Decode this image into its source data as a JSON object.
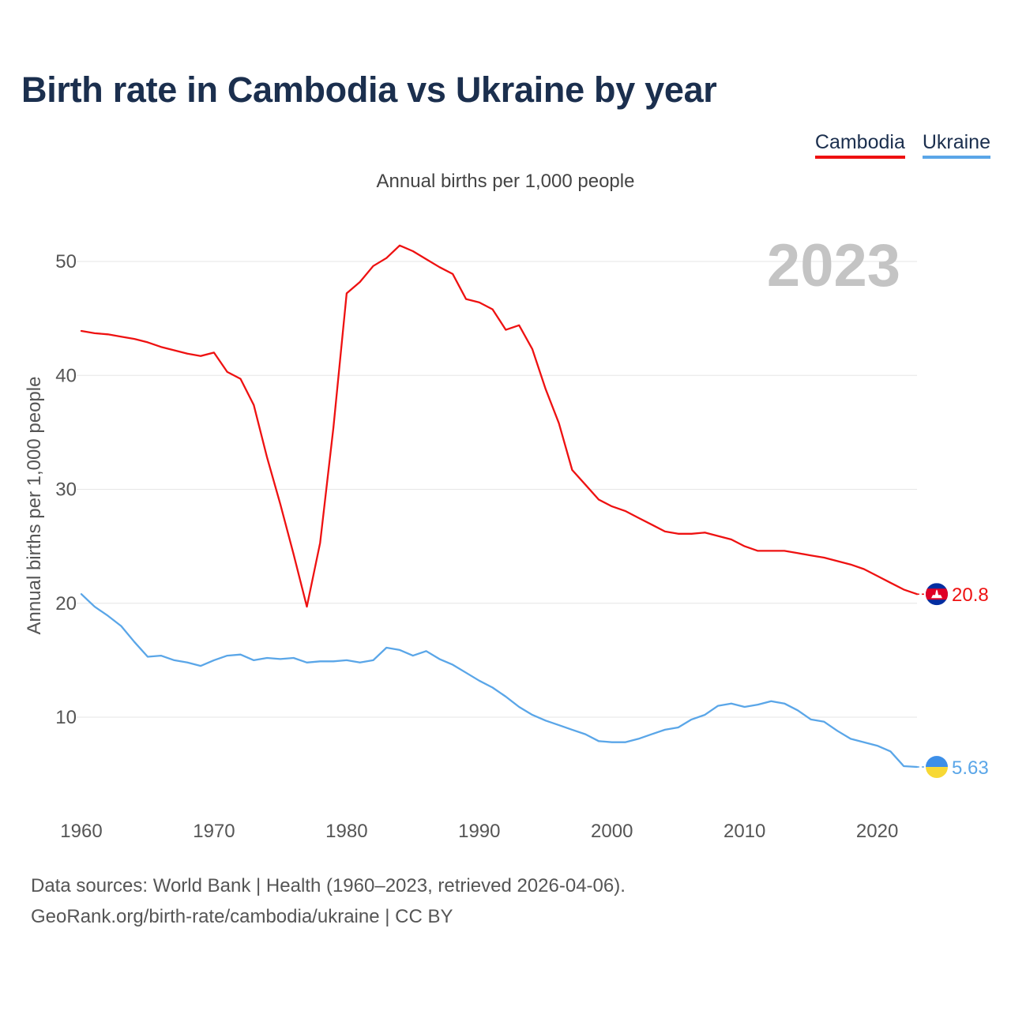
{
  "title": "Birth rate in Cambodia vs Ukraine by year",
  "subtitle": "Annual births per 1,000 people",
  "legend": [
    {
      "label": "Cambodia",
      "color": "#ee1111"
    },
    {
      "label": "Ukraine",
      "color": "#5aa6e8"
    }
  ],
  "year_watermark": "2023",
  "footer": {
    "line1": "Data sources: World Bank | Health (1960–2023, retrieved 2026-04-06).",
    "line2": "GeoRank.org/birth-rate/cambodia/ukraine | CC BY"
  },
  "chart_data": {
    "type": "line",
    "title": "Birth rate in Cambodia vs Ukraine by year",
    "ylabel": "Annual births per 1,000 people",
    "xlabel": "",
    "xlim": [
      1960,
      2023
    ],
    "ylim": [
      3,
      57
    ],
    "yticks": [
      10,
      20,
      30,
      40,
      50
    ],
    "xticks": [
      1960,
      1970,
      1980,
      1990,
      2000,
      2010,
      2020
    ],
    "grid": true,
    "x": [
      1960,
      1961,
      1962,
      1963,
      1964,
      1965,
      1966,
      1967,
      1968,
      1969,
      1970,
      1971,
      1972,
      1973,
      1974,
      1975,
      1976,
      1977,
      1978,
      1979,
      1980,
      1981,
      1982,
      1983,
      1984,
      1985,
      1986,
      1987,
      1988,
      1989,
      1990,
      1991,
      1992,
      1993,
      1994,
      1995,
      1996,
      1997,
      1998,
      1999,
      2000,
      2001,
      2002,
      2003,
      2004,
      2005,
      2006,
      2007,
      2008,
      2009,
      2010,
      2011,
      2012,
      2013,
      2014,
      2015,
      2016,
      2017,
      2018,
      2019,
      2020,
      2021,
      2022,
      2023
    ],
    "series": [
      {
        "name": "Cambodia",
        "color": "#ee1111",
        "end_label": "20.8",
        "values": [
          43.9,
          43.7,
          43.6,
          43.4,
          43.2,
          42.9,
          42.5,
          42.2,
          41.9,
          41.7,
          42.0,
          40.3,
          39.7,
          37.4,
          32.8,
          28.7,
          24.3,
          19.7,
          25.3,
          35.4,
          47.2,
          48.2,
          49.6,
          50.3,
          51.4,
          50.9,
          50.2,
          49.5,
          48.9,
          46.7,
          46.4,
          45.8,
          44.0,
          44.4,
          42.3,
          38.8,
          35.8,
          31.7,
          30.4,
          29.1,
          28.5,
          28.1,
          27.5,
          26.9,
          26.3,
          26.1,
          26.1,
          26.2,
          25.9,
          25.6,
          25.0,
          24.6,
          24.6,
          24.6,
          24.4,
          24.2,
          24.0,
          23.7,
          23.4,
          23.0,
          22.4,
          21.8,
          21.2,
          20.8
        ]
      },
      {
        "name": "Ukraine",
        "color": "#5aa6e8",
        "end_label": "5.63",
        "values": [
          20.8,
          19.7,
          18.9,
          18.0,
          16.6,
          15.3,
          15.4,
          15.0,
          14.8,
          14.5,
          15.0,
          15.4,
          15.5,
          15.0,
          15.2,
          15.1,
          15.2,
          14.8,
          14.9,
          14.9,
          15.0,
          14.8,
          15.0,
          16.1,
          15.9,
          15.4,
          15.8,
          15.1,
          14.6,
          13.9,
          13.2,
          12.6,
          11.8,
          10.9,
          10.2,
          9.7,
          9.3,
          8.9,
          8.5,
          7.9,
          7.8,
          7.8,
          8.1,
          8.5,
          8.9,
          9.1,
          9.8,
          10.2,
          11.0,
          11.2,
          10.9,
          11.1,
          11.4,
          11.2,
          10.6,
          9.8,
          9.6,
          8.8,
          8.1,
          7.8,
          7.5,
          7.0,
          5.7,
          5.63
        ]
      }
    ]
  }
}
